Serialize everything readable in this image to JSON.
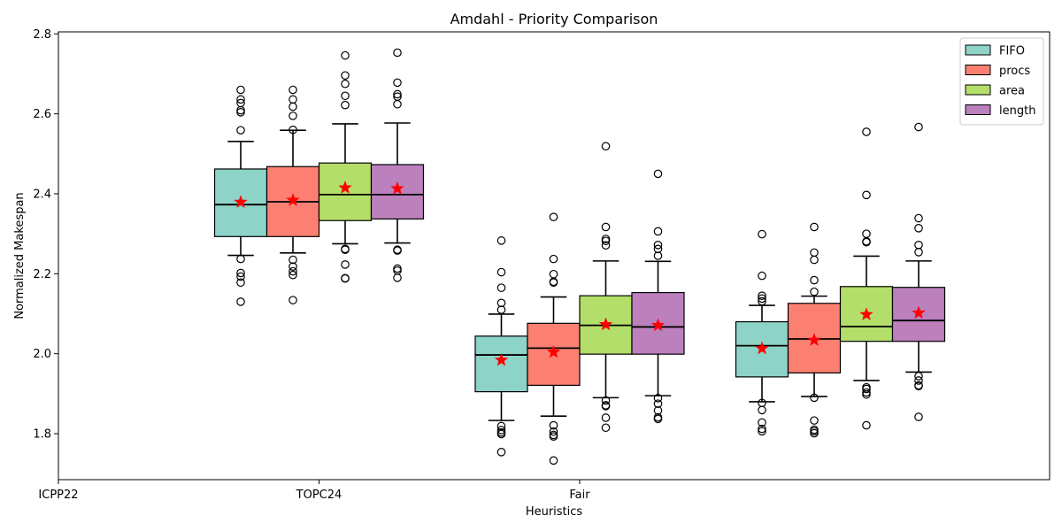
{
  "chart_data": {
    "type": "box",
    "title": "Amdahl - Priority Comparison",
    "xlabel": "Heuristics",
    "ylabel": "Normalized Makespan",
    "ylim": [
      1.685,
      2.805
    ],
    "yticks": [
      1.8,
      2.0,
      2.2,
      2.4,
      2.6,
      2.8
    ],
    "ytick_labels": [
      "1.8",
      "2.0",
      "2.2",
      "2.4",
      "2.6",
      "2.8"
    ],
    "xtick_labels": [
      "ICPP22",
      "TOPC24",
      "Fair"
    ],
    "legend_position": "top-right",
    "mean_marker": "red star",
    "series": [
      {
        "name": "FIFO",
        "color": "#8dd3c7"
      },
      {
        "name": "procs",
        "color": "#fb8072"
      },
      {
        "name": "area",
        "color": "#b3de69"
      },
      {
        "name": "length",
        "color": "#bc80bd"
      }
    ],
    "groups": [
      {
        "boxes": [
          {
            "series": "FIFO",
            "q1": 2.293,
            "median": 2.373,
            "q3": 2.462,
            "whisker_low": 2.246,
            "whisker_high": 2.531,
            "mean": 2.379,
            "outliers": [
              2.66,
              2.636,
              2.627,
              2.609,
              2.604,
              2.559,
              2.237,
              2.202,
              2.193,
              2.178,
              2.13
            ]
          },
          {
            "series": "procs",
            "q1": 2.293,
            "median": 2.38,
            "q3": 2.468,
            "whisker_low": 2.252,
            "whisker_high": 2.559,
            "mean": 2.384,
            "outliers": [
              2.66,
              2.636,
              2.618,
              2.595,
              2.56,
              2.235,
              2.218,
              2.206,
              2.197,
              2.134
            ]
          },
          {
            "series": "area",
            "q1": 2.333,
            "median": 2.398,
            "q3": 2.477,
            "whisker_low": 2.275,
            "whisker_high": 2.575,
            "mean": 2.415,
            "outliers": [
              2.746,
              2.696,
              2.675,
              2.645,
              2.622,
              2.262,
              2.26,
              2.223,
              2.189,
              2.188
            ]
          },
          {
            "series": "length",
            "q1": 2.337,
            "median": 2.398,
            "q3": 2.473,
            "whisker_low": 2.277,
            "whisker_high": 2.577,
            "mean": 2.413,
            "outliers": [
              2.753,
              2.678,
              2.649,
              2.643,
              2.624,
              2.26,
              2.258,
              2.213,
              2.208,
              2.19
            ]
          }
        ]
      },
      {
        "boxes": [
          {
            "series": "FIFO",
            "q1": 1.905,
            "median": 1.997,
            "q3": 2.044,
            "whisker_low": 1.833,
            "whisker_high": 2.099,
            "mean": 1.984,
            "outliers": [
              2.283,
              2.204,
              2.165,
              2.127,
              2.11,
              1.819,
              1.809,
              1.803,
              1.799,
              1.754
            ]
          },
          {
            "series": "procs",
            "q1": 1.921,
            "median": 2.014,
            "q3": 2.076,
            "whisker_low": 1.844,
            "whisker_high": 2.142,
            "mean": 2.004,
            "outliers": [
              2.342,
              2.237,
              2.199,
              2.18,
              2.178,
              1.821,
              1.805,
              1.797,
              1.793,
              1.733
            ]
          },
          {
            "series": "area",
            "q1": 1.999,
            "median": 2.071,
            "q3": 2.145,
            "whisker_low": 1.89,
            "whisker_high": 2.232,
            "mean": 2.073,
            "outliers": [
              2.519,
              2.317,
              2.287,
              2.282,
              2.271,
              1.883,
              1.871,
              1.869,
              1.84,
              1.815
            ]
          },
          {
            "series": "length",
            "q1": 1.999,
            "median": 2.067,
            "q3": 2.153,
            "whisker_low": 1.895,
            "whisker_high": 2.231,
            "mean": 2.071,
            "outliers": [
              2.45,
              2.306,
              2.272,
              2.262,
              2.245,
              1.889,
              1.875,
              1.858,
              1.841,
              1.837
            ]
          }
        ]
      },
      {
        "boxes": [
          {
            "series": "FIFO",
            "q1": 1.942,
            "median": 2.02,
            "q3": 2.08,
            "whisker_low": 1.88,
            "whisker_high": 2.121,
            "mean": 2.013,
            "outliers": [
              2.299,
              2.195,
              2.145,
              2.138,
              2.131,
              1.877,
              1.859,
              1.828,
              1.812,
              1.806
            ]
          },
          {
            "series": "procs",
            "q1": 1.952,
            "median": 2.037,
            "q3": 2.126,
            "whisker_low": 1.893,
            "whisker_high": 2.144,
            "mean": 2.034,
            "outliers": [
              2.317,
              2.253,
              2.235,
              2.184,
              2.155,
              1.89,
              1.833,
              1.81,
              1.806,
              1.801
            ]
          },
          {
            "series": "area",
            "q1": 2.031,
            "median": 2.068,
            "q3": 2.168,
            "whisker_low": 1.933,
            "whisker_high": 2.244,
            "mean": 2.098,
            "outliers": [
              2.555,
              2.397,
              2.3,
              2.281,
              2.279,
              1.916,
              1.912,
              1.903,
              1.898,
              1.821
            ]
          },
          {
            "series": "length",
            "q1": 2.031,
            "median": 2.083,
            "q3": 2.166,
            "whisker_low": 1.954,
            "whisker_high": 2.232,
            "mean": 2.102,
            "outliers": [
              2.567,
              2.339,
              2.314,
              2.272,
              2.254,
              1.944,
              1.933,
              1.921,
              1.919,
              1.842
            ]
          }
        ]
      }
    ]
  }
}
